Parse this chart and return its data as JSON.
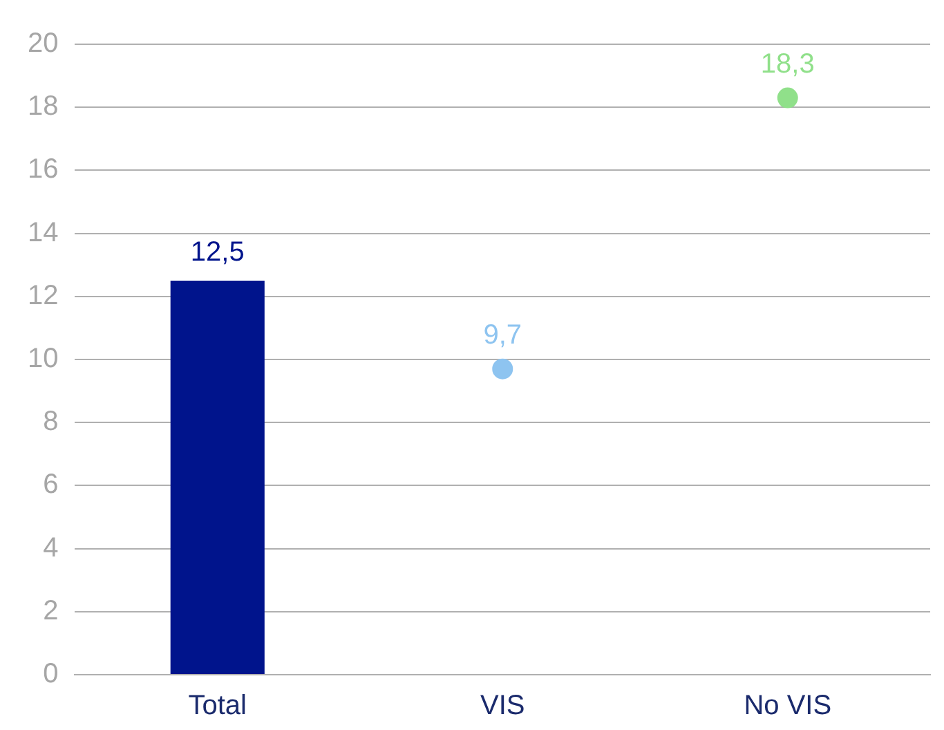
{
  "chart_data": {
    "type": "bar",
    "categories": [
      "Total",
      "VIS",
      "No VIS"
    ],
    "series": [
      {
        "color": "#00148c",
        "values": [
          12.5,
          null,
          null
        ],
        "value_labels": [
          "12,5",
          null,
          null
        ]
      },
      {
        "type": "scatter",
        "color": "#8ec4f0",
        "values": [
          null,
          9.7,
          null
        ],
        "value_labels": [
          null,
          "9,7",
          null
        ]
      },
      {
        "type": "scatter",
        "color": "#90e08a",
        "values": [
          null,
          null,
          18.3
        ],
        "value_labels": [
          null,
          null,
          "18,3"
        ]
      }
    ],
    "ylim": [
      0,
      20
    ],
    "yticks": [
      0,
      2,
      4,
      6,
      8,
      10,
      12,
      14,
      16,
      18,
      20
    ],
    "grid": "y",
    "legend": false,
    "marker": "circle"
  }
}
